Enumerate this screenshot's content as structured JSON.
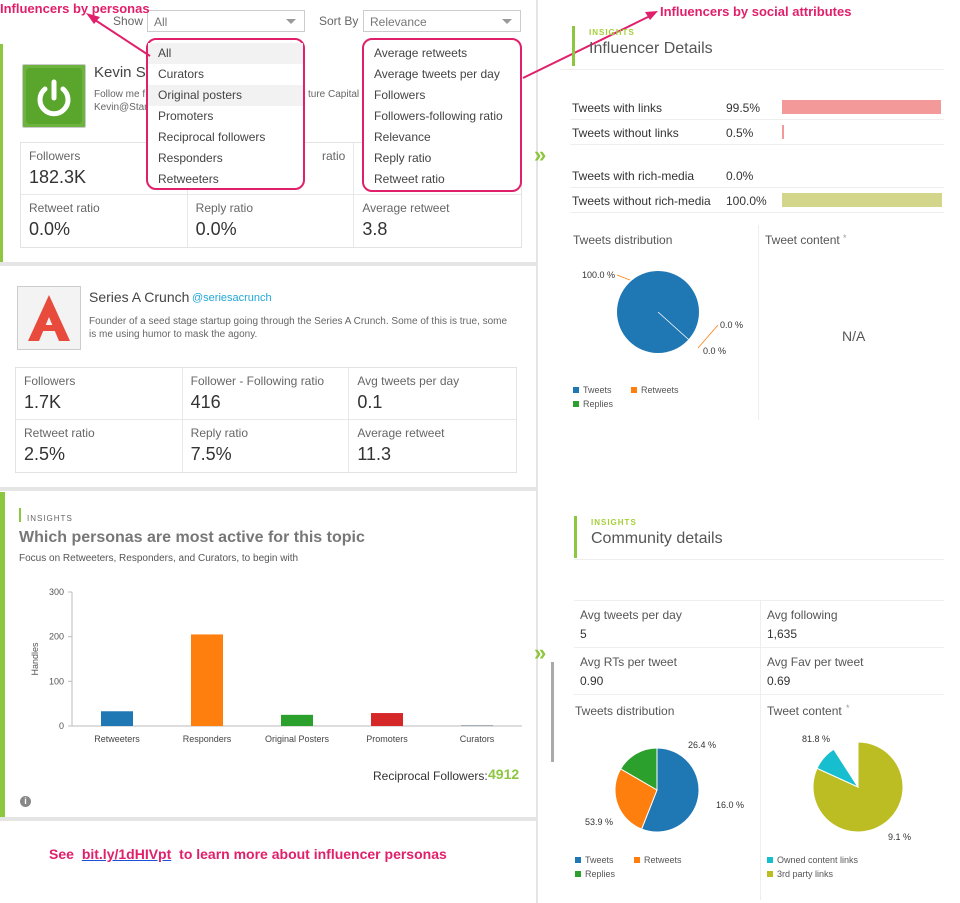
{
  "annotations": {
    "personas": "Influencers by personas",
    "social": "Influencers by social attributes",
    "footer_see": "See",
    "footer_link": "bit.ly/1dHIVpt",
    "footer_rest": "to learn more about influencer personas"
  },
  "toolbar": {
    "show_label": "Show",
    "show_value": "All",
    "sort_label": "Sort By",
    "sort_value": "Relevance"
  },
  "show_options": [
    "All",
    "Curators",
    "Original posters",
    "Promoters",
    "Reciprocal followers",
    "Responders",
    "Retweeters"
  ],
  "sort_options": [
    "Average retweets",
    "Average tweets per day",
    "Followers",
    "Followers-following ratio",
    "Relevance",
    "Reply ratio",
    "Retweet ratio"
  ],
  "influencer1": {
    "name": "Kevin St",
    "bio1": "Follow me f",
    "bio1b": "ture Capital a",
    "bio2": "Kevin@Star",
    "stats": [
      {
        "label": "Followers",
        "value": "182.3K"
      },
      {
        "label": "ratio",
        "value": ""
      },
      {
        "label": "",
        "value": ""
      },
      {
        "label": "Retweet ratio",
        "value": "0.0%"
      },
      {
        "label": "Reply ratio",
        "value": "0.0%"
      },
      {
        "label": "Average retweet",
        "value": "3.8"
      }
    ]
  },
  "influencer2": {
    "name": "Series A Crunch",
    "handle": "@seriesacrunch",
    "bio": "Founder of a seed stage startup going through the Series A Crunch. Some of this is true, some is me using humor to mask the agony.",
    "stats": [
      {
        "label": "Followers",
        "value": "1.7K"
      },
      {
        "label": "Follower - Following ratio",
        "value": "416"
      },
      {
        "label": "Avg tweets per day",
        "value": "0.1"
      },
      {
        "label": "Retweet ratio",
        "value": "2.5%"
      },
      {
        "label": "Reply ratio",
        "value": "7.5%"
      },
      {
        "label": "Average retweet",
        "value": "11.3"
      }
    ]
  },
  "persona_insight": {
    "tag": "INSIGHTS",
    "title": "Which personas are most active for this topic",
    "subtitle": "Focus on Retweeters, Responders, and Curators, to begin with",
    "reciprocal_label": "Reciprocal Followers:",
    "reciprocal_value": "4912"
  },
  "chart_data": {
    "type": "bar",
    "categories": [
      "Retweeters",
      "Responders",
      "Original Posters",
      "Promoters",
      "Curators"
    ],
    "values": [
      33,
      205,
      25,
      29,
      2
    ],
    "colors": [
      "#1f77b4",
      "#ff7f0e",
      "#2ca02c",
      "#d62728",
      "#9aa5ad"
    ],
    "ylabel": "Handles",
    "ylim": [
      0,
      300
    ],
    "yticks": [
      0,
      100,
      200,
      300
    ],
    "grid": false
  },
  "influencer_details": {
    "tag": "INSIGHTS",
    "title": "Influencer Details",
    "rows": [
      {
        "label": "Tweets with links",
        "value": "99.5%",
        "fraction": 0.995,
        "color": "#f4999a"
      },
      {
        "label": "Tweets without links",
        "value": "0.5%",
        "fraction": 0.005,
        "color": "#f4999a"
      },
      {
        "label": "Tweets with rich-media",
        "value": "0.0%",
        "fraction": 0.0,
        "color": "#d3d58a"
      },
      {
        "label": "Tweets without rich-media",
        "value": "100.0%",
        "fraction": 1.0,
        "color": "#d3d58a"
      }
    ],
    "dist_title": "Tweets distribution",
    "content_title": "Tweet content",
    "content_value": "N/A",
    "pie1": [
      {
        "label": "100.0 %",
        "value": 100,
        "color": "#1f77b4"
      },
      {
        "label": "0.0 %",
        "value": 0,
        "color": "#ff7f0e"
      },
      {
        "label": "0.0 %",
        "value": 0,
        "color": "#2ca02c"
      }
    ],
    "legend": [
      "Tweets",
      "Retweets",
      "Replies"
    ]
  },
  "community": {
    "tag": "INSIGHTS",
    "title": "Community details",
    "cells": [
      {
        "label": "Avg tweets per day",
        "value": "5"
      },
      {
        "label": "Avg following",
        "value": "1,635"
      },
      {
        "label": "Avg RTs per tweet",
        "value": "0.90"
      },
      {
        "label": "Avg Fav per tweet",
        "value": "0.69"
      }
    ],
    "dist_title": "Tweets distribution",
    "content_title": "Tweet content",
    "pie_dist": [
      {
        "label": "53.9 %",
        "value": 53.9,
        "color": "#1f77b4"
      },
      {
        "label": "26.4 %",
        "value": 26.4,
        "color": "#ff7f0e"
      },
      {
        "label": "16.0 %",
        "value": 16.0,
        "color": "#2ca02c"
      }
    ],
    "pie_content": [
      {
        "label": "81.8 %",
        "value": 81.8,
        "color": "#bcbd22"
      },
      {
        "label": "9.1 %",
        "value": 9.1,
        "color": "#17becf"
      }
    ],
    "legend_dist": [
      "Tweets",
      "Retweets",
      "Replies"
    ],
    "legend_content": [
      "Owned content links",
      "3rd party links"
    ]
  },
  "colors": {
    "accent": "#8dc63f",
    "annotation": "#e0206b",
    "value_green": "#8dc63f"
  }
}
